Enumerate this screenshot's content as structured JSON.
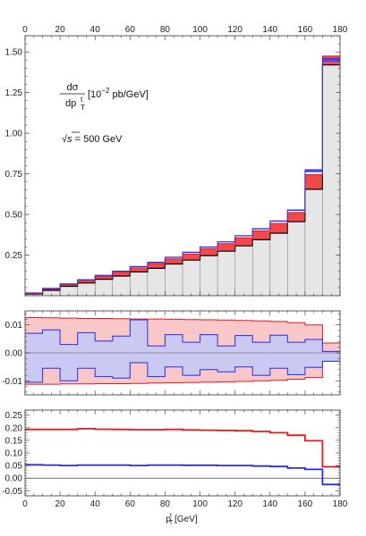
{
  "chart_data": [
    {
      "type": "bar",
      "panel": "distribution",
      "x_bin_edges": [
        0,
        10,
        20,
        30,
        40,
        50,
        60,
        70,
        80,
        90,
        100,
        110,
        120,
        130,
        140,
        150,
        160,
        170,
        180
      ],
      "xlim": [
        0,
        180
      ],
      "ylim": [
        0,
        1.6
      ],
      "x_ticks": [
        0,
        20,
        40,
        60,
        80,
        100,
        120,
        140,
        160,
        180
      ],
      "x_tick_labels": [
        "0",
        "20",
        "40",
        "60",
        "80",
        "100",
        "120",
        "140",
        "160",
        "180"
      ],
      "y_ticks": [
        0.25,
        0.5,
        0.75,
        1.0,
        1.25,
        1.5
      ],
      "y_tick_labels": [
        "0.25",
        "0.50",
        "0.75",
        "1.00",
        "1.25",
        "1.50"
      ],
      "annotation": {
        "num": "dσ",
        "den": "dp",
        "den_sub": "T",
        "den_sup": "t",
        "units": "[10",
        "units_exp": "−2",
        "units_tail": " pb/GeV]",
        "sqrt_sym": "√",
        "sqrt_var": "s",
        "energy": " = 500 GeV"
      },
      "series": [
        {
          "name": "",
          "role": "base",
          "color": "#000000",
          "values": [
            0.01,
            0.033,
            0.058,
            0.078,
            0.101,
            0.121,
            0.146,
            0.168,
            0.195,
            0.219,
            0.247,
            0.274,
            0.307,
            0.344,
            0.385,
            0.455,
            0.655,
            1.42
          ]
        },
        {
          "name": "",
          "role": "red-band-top",
          "color": "#e8191c",
          "values": [
            0.012,
            0.04,
            0.068,
            0.092,
            0.118,
            0.144,
            0.171,
            0.198,
            0.227,
            0.257,
            0.289,
            0.32,
            0.357,
            0.399,
            0.445,
            0.512,
            0.745,
            1.475
          ]
        },
        {
          "name": "",
          "role": "blue-band-low",
          "color": "#2a2ae8",
          "values": [
            0.015,
            0.043,
            0.071,
            0.097,
            0.123,
            0.149,
            0.177,
            0.204,
            0.234,
            0.265,
            0.297,
            0.328,
            0.366,
            0.408,
            0.455,
            0.522,
            0.76,
            1.44
          ]
        },
        {
          "name": "",
          "role": "blue-band-high",
          "color": "#2a2ae8",
          "values": [
            0.017,
            0.045,
            0.073,
            0.099,
            0.126,
            0.151,
            0.18,
            0.206,
            0.237,
            0.268,
            0.3,
            0.332,
            0.37,
            0.413,
            0.461,
            0.528,
            0.775,
            1.46
          ]
        }
      ]
    },
    {
      "type": "area",
      "panel": "uncertainty",
      "x_bin_edges": [
        0,
        10,
        20,
        30,
        40,
        50,
        60,
        70,
        80,
        90,
        100,
        110,
        120,
        130,
        140,
        150,
        160,
        170,
        180
      ],
      "xlim": [
        0,
        180
      ],
      "ylim": [
        -0.015,
        0.015
      ],
      "y_ticks": [
        -0.01,
        0.0,
        0.01
      ],
      "y_tick_labels": [
        "-0.01",
        "0.00",
        "0.01"
      ],
      "series": [
        {
          "name": "",
          "role": "red-band",
          "color": "#e8191c",
          "upper": [
            0.0126,
            0.0125,
            0.0124,
            0.0123,
            0.0123,
            0.0122,
            0.0121,
            0.0121,
            0.012,
            0.0119,
            0.0118,
            0.0117,
            0.0116,
            0.0114,
            0.0112,
            0.0108,
            0.01,
            0.0035
          ],
          "lower": [
            -0.0112,
            -0.0112,
            -0.0111,
            -0.0111,
            -0.011,
            -0.011,
            -0.0109,
            -0.0108,
            -0.0107,
            -0.0106,
            -0.0105,
            -0.0104,
            -0.0102,
            -0.01,
            -0.0098,
            -0.0094,
            -0.0088,
            -0.001
          ]
        },
        {
          "name": "",
          "role": "blue-band",
          "color": "#2a2ae8",
          "upper": [
            0.007,
            0.0082,
            0.003,
            0.0072,
            0.0042,
            0.006,
            0.0118,
            0.0025,
            0.0065,
            0.0038,
            0.0065,
            0.0025,
            0.0062,
            0.0038,
            0.0063,
            0.0038,
            0.0048,
            0.0005
          ],
          "lower": [
            -0.0105,
            -0.0055,
            -0.01,
            -0.0055,
            -0.0085,
            -0.009,
            -0.0035,
            -0.0085,
            -0.005,
            -0.008,
            -0.006,
            -0.0068,
            -0.005,
            -0.008,
            -0.0055,
            -0.0078,
            -0.0052,
            -0.003
          ]
        }
      ]
    },
    {
      "type": "line",
      "panel": "ratio",
      "x_bin_edges": [
        0,
        10,
        20,
        30,
        40,
        50,
        60,
        70,
        80,
        90,
        100,
        110,
        120,
        130,
        140,
        150,
        160,
        170,
        180
      ],
      "xlim": [
        0,
        180
      ],
      "ylim": [
        -0.07,
        0.27
      ],
      "x_ticks": [
        0,
        20,
        40,
        60,
        80,
        100,
        120,
        140,
        160,
        180
      ],
      "x_tick_labels": [
        "0",
        "20",
        "40",
        "60",
        "80",
        "100",
        "120",
        "140",
        "160",
        "180"
      ],
      "y_ticks": [
        -0.05,
        0.0,
        0.05,
        0.1,
        0.15,
        0.2,
        0.25
      ],
      "y_tick_labels": [
        "-0.05",
        "0.00",
        "0.05",
        "0.10",
        "0.15",
        "0.20",
        "0.25"
      ],
      "xlabel": "p",
      "xlabel_sup": "t",
      "xlabel_sub": "T",
      "xlabel_units": "[GeV]",
      "series": [
        {
          "name": "",
          "color": "#e8191c",
          "values": [
            0.193,
            0.193,
            0.193,
            0.196,
            0.194,
            0.193,
            0.192,
            0.192,
            0.193,
            0.191,
            0.19,
            0.189,
            0.188,
            0.185,
            0.18,
            0.17,
            0.148,
            0.045
          ]
        },
        {
          "name": "",
          "color": "#2a2ae8",
          "values": [
            0.053,
            0.052,
            0.05,
            0.052,
            0.052,
            0.052,
            0.05,
            0.052,
            0.052,
            0.051,
            0.051,
            0.05,
            0.05,
            0.048,
            0.046,
            0.04,
            0.035,
            -0.025
          ]
        }
      ]
    }
  ]
}
